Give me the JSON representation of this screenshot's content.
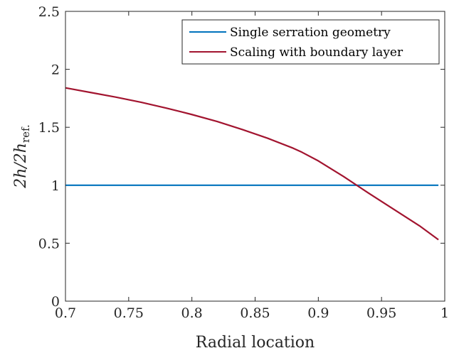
{
  "chart_data": {
    "type": "line",
    "title": "",
    "xlabel": "Radial location",
    "ylabel_parts": {
      "base": "2h/2h",
      "subscript": "ref."
    },
    "xlim": [
      0.7,
      1.0
    ],
    "ylim": [
      0,
      2.5
    ],
    "xticks": [
      0.7,
      0.75,
      0.8,
      0.85,
      0.9,
      0.95,
      1.0
    ],
    "xtick_labels": [
      "0.7",
      "0.75",
      "0.8",
      "0.85",
      "0.9",
      "0.95",
      "1"
    ],
    "yticks": [
      0,
      0.5,
      1,
      1.5,
      2,
      2.5
    ],
    "ytick_labels": [
      "0",
      "0.5",
      "1",
      "1.5",
      "2",
      "2.5"
    ],
    "grid": false,
    "legend_position": "top-right",
    "series": [
      {
        "name": "Single serration geometry",
        "color": "#0072bd",
        "x": [
          0.7,
          0.995
        ],
        "y": [
          1.0,
          1.0
        ]
      },
      {
        "name": "Scaling with boundary layer",
        "color": "#a2142f",
        "x": [
          0.7,
          0.72,
          0.74,
          0.76,
          0.78,
          0.8,
          0.82,
          0.84,
          0.86,
          0.88,
          0.887,
          0.9,
          0.92,
          0.94,
          0.96,
          0.98,
          0.995
        ],
        "y": [
          1.84,
          1.8,
          1.76,
          1.715,
          1.665,
          1.61,
          1.55,
          1.48,
          1.405,
          1.32,
          1.285,
          1.21,
          1.075,
          0.93,
          0.79,
          0.65,
          0.53
        ]
      }
    ]
  }
}
